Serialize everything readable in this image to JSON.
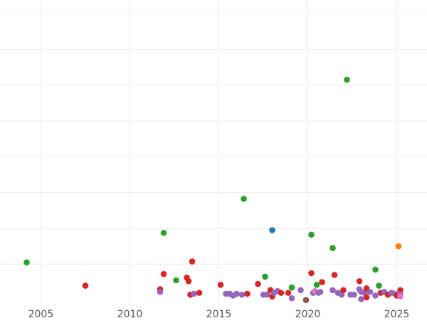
{
  "chart_data": {
    "type": "scatter",
    "title": "",
    "xlabel": "",
    "ylabel": "",
    "grid": true,
    "legend": "none",
    "xlim": [
      2002.7,
      2026.7
    ],
    "ylim": [
      -0.5,
      33.5
    ],
    "x_ticks": [
      2005,
      2010,
      2015,
      2020,
      2025
    ],
    "x_tick_labels": [
      "2005",
      "2010",
      "2015",
      "2020",
      "2025"
    ],
    "y_gridlines": [
      4,
      8,
      12,
      16,
      20,
      24,
      28,
      32
    ],
    "colors": {
      "green": "#2ca02c",
      "red": "#d62728",
      "purple": "#9467bd",
      "blue": "#1f77b4",
      "orange": "#ff7f0e",
      "brown": "#8c564b",
      "pink": "#e377c2",
      "grid": "#ebebeb",
      "tick_text": "#555555"
    },
    "points": [
      {
        "x": 2004.2,
        "y": 4.2,
        "c": "green"
      },
      {
        "x": 2007.5,
        "y": 1.6,
        "c": "red"
      },
      {
        "x": 2011.7,
        "y": 1.2,
        "c": "red"
      },
      {
        "x": 2011.7,
        "y": 0.9,
        "c": "purple"
      },
      {
        "x": 2011.9,
        "y": 7.5,
        "c": "green"
      },
      {
        "x": 2011.9,
        "y": 2.9,
        "c": "red"
      },
      {
        "x": 2012.6,
        "y": 2.2,
        "c": "green"
      },
      {
        "x": 2013.2,
        "y": 2.5,
        "c": "red"
      },
      {
        "x": 2013.3,
        "y": 2.1,
        "c": "red"
      },
      {
        "x": 2013.4,
        "y": 0.6,
        "c": "red"
      },
      {
        "x": 2013.5,
        "y": 4.3,
        "c": "red"
      },
      {
        "x": 2013.6,
        "y": 0.7,
        "c": "purple"
      },
      {
        "x": 2013.9,
        "y": 0.8,
        "c": "red"
      },
      {
        "x": 2015.1,
        "y": 1.7,
        "c": "red"
      },
      {
        "x": 2015.4,
        "y": 0.7,
        "c": "purple"
      },
      {
        "x": 2015.6,
        "y": 0.7,
        "c": "purple"
      },
      {
        "x": 2015.8,
        "y": 0.5,
        "c": "purple"
      },
      {
        "x": 2016.0,
        "y": 0.7,
        "c": "purple"
      },
      {
        "x": 2016.3,
        "y": 0.6,
        "c": "purple"
      },
      {
        "x": 2016.4,
        "y": 11.3,
        "c": "green"
      },
      {
        "x": 2016.6,
        "y": 0.7,
        "c": "red"
      },
      {
        "x": 2017.2,
        "y": 1.8,
        "c": "red"
      },
      {
        "x": 2017.5,
        "y": 0.6,
        "c": "purple"
      },
      {
        "x": 2017.6,
        "y": 2.6,
        "c": "green"
      },
      {
        "x": 2017.7,
        "y": 0.6,
        "c": "purple"
      },
      {
        "x": 2017.9,
        "y": 1.1,
        "c": "red"
      },
      {
        "x": 2018.0,
        "y": 7.8,
        "c": "blue"
      },
      {
        "x": 2018.0,
        "y": 0.4,
        "c": "red"
      },
      {
        "x": 2018.1,
        "y": 0.8,
        "c": "purple"
      },
      {
        "x": 2018.3,
        "y": 1.0,
        "c": "purple"
      },
      {
        "x": 2018.5,
        "y": 0.8,
        "c": "red"
      },
      {
        "x": 2018.9,
        "y": 0.8,
        "c": "red"
      },
      {
        "x": 2019.1,
        "y": 1.4,
        "c": "green"
      },
      {
        "x": 2019.1,
        "y": 0.2,
        "c": "purple"
      },
      {
        "x": 2019.6,
        "y": 1.1,
        "c": "purple"
      },
      {
        "x": 2019.9,
        "y": 0.0,
        "c": "brown"
      },
      {
        "x": 2020.2,
        "y": 7.3,
        "c": "green"
      },
      {
        "x": 2020.2,
        "y": 3.0,
        "c": "red"
      },
      {
        "x": 2020.3,
        "y": 0.8,
        "c": "purple"
      },
      {
        "x": 2020.4,
        "y": 1.0,
        "c": "pink"
      },
      {
        "x": 2020.5,
        "y": 1.7,
        "c": "green"
      },
      {
        "x": 2020.6,
        "y": 0.8,
        "c": "purple"
      },
      {
        "x": 2020.7,
        "y": 0.9,
        "c": "purple"
      },
      {
        "x": 2020.8,
        "y": 2.0,
        "c": "red"
      },
      {
        "x": 2021.4,
        "y": 5.8,
        "c": "green"
      },
      {
        "x": 2021.4,
        "y": 1.1,
        "c": "purple"
      },
      {
        "x": 2021.5,
        "y": 2.8,
        "c": "red"
      },
      {
        "x": 2021.7,
        "y": 0.8,
        "c": "purple"
      },
      {
        "x": 2021.9,
        "y": 0.6,
        "c": "purple"
      },
      {
        "x": 2022.0,
        "y": 1.1,
        "c": "red"
      },
      {
        "x": 2022.2,
        "y": 24.6,
        "c": "green"
      },
      {
        "x": 2022.4,
        "y": 0.6,
        "c": "purple"
      },
      {
        "x": 2022.6,
        "y": 0.6,
        "c": "purple"
      },
      {
        "x": 2022.9,
        "y": 2.1,
        "c": "red"
      },
      {
        "x": 2022.9,
        "y": 1.2,
        "c": "purple"
      },
      {
        "x": 2023.0,
        "y": 0.9,
        "c": "purple"
      },
      {
        "x": 2023.0,
        "y": 0.1,
        "c": "purple"
      },
      {
        "x": 2023.2,
        "y": 0.8,
        "c": "purple"
      },
      {
        "x": 2023.3,
        "y": 1.3,
        "c": "red"
      },
      {
        "x": 2023.3,
        "y": 0.3,
        "c": "red"
      },
      {
        "x": 2023.5,
        "y": 0.9,
        "c": "purple"
      },
      {
        "x": 2023.8,
        "y": 3.4,
        "c": "green"
      },
      {
        "x": 2023.8,
        "y": 0.5,
        "c": "purple"
      },
      {
        "x": 2024.0,
        "y": 1.6,
        "c": "green"
      },
      {
        "x": 2024.1,
        "y": 0.8,
        "c": "red"
      },
      {
        "x": 2024.3,
        "y": 0.9,
        "c": "purple"
      },
      {
        "x": 2024.5,
        "y": 0.6,
        "c": "red"
      },
      {
        "x": 2024.7,
        "y": 0.8,
        "c": "purple"
      },
      {
        "x": 2024.9,
        "y": 0.7,
        "c": "purple"
      },
      {
        "x": 2025.0,
        "y": 0.5,
        "c": "red"
      },
      {
        "x": 2025.1,
        "y": 6.0,
        "c": "orange"
      },
      {
        "x": 2025.2,
        "y": 1.1,
        "c": "red"
      },
      {
        "x": 2025.2,
        "y": 0.6,
        "c": "purple"
      },
      {
        "x": 2025.2,
        "y": 0.4,
        "c": "pink"
      }
    ]
  }
}
